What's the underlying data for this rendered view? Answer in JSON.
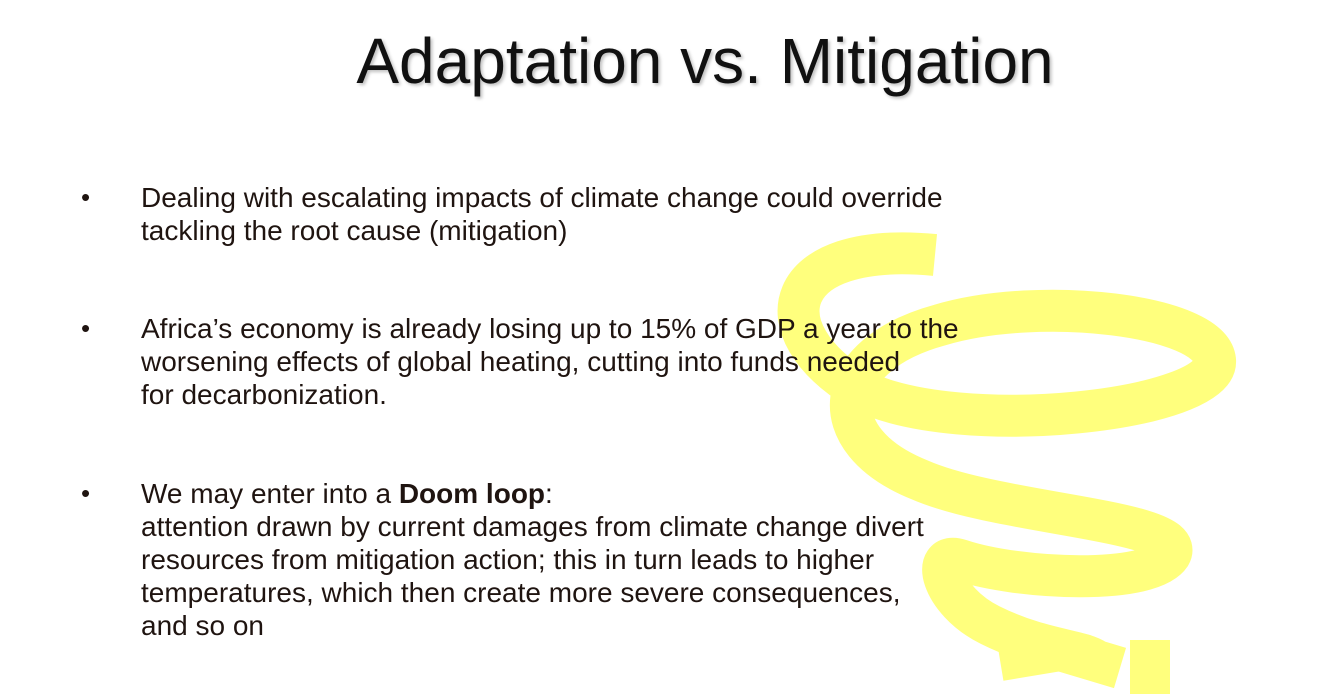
{
  "slide": {
    "title": "Adaptation vs. Mitigation",
    "bullet_symbol": "•",
    "bullets": [
      {
        "lines": [
          "Dealing with escalating impacts of climate change could override",
          "tackling the root cause (mitigation)"
        ]
      },
      {
        "lines": [
          "Africa’s economy is already losing up to 15% of GDP a year to the",
          "worsening effects of global heating, cutting into funds needed",
          "for decarbonization."
        ]
      },
      {
        "intro": "We may enter into a ",
        "emphasis": "Doom loop",
        "intro_end": ":",
        "lines": [
          "attention drawn by current damages from climate change divert",
          "resources from mitigation action; this in turn leads to higher",
          "temperatures, which then create more severe consequences,",
          "and so on"
        ]
      }
    ]
  },
  "colors": {
    "spiral_highlight": "#ffff66",
    "text": "#1f1410"
  }
}
